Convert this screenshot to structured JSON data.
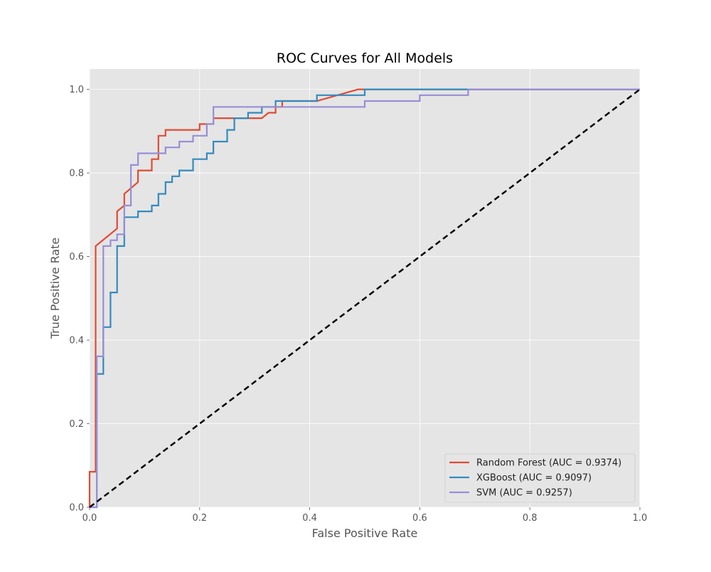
{
  "chart_data": {
    "type": "line",
    "title": "ROC Curves for All Models",
    "xlabel": "False Positive Rate",
    "ylabel": "True Positive Rate",
    "xlim": [
      0.0,
      1.0
    ],
    "ylim": [
      0.0,
      1.05
    ],
    "x_ticks": [
      "0.0",
      "0.2",
      "0.4",
      "0.6",
      "0.8",
      "1.0"
    ],
    "y_ticks": [
      "0.0",
      "0.2",
      "0.4",
      "0.6",
      "0.8",
      "1.0"
    ],
    "grid": true,
    "legend_position": "lower-right",
    "background_color": "#e5e5e5",
    "series": [
      {
        "name": "Random Forest (AUC = 0.9374)",
        "color": "#e24a33",
        "points": [
          [
            0.0,
            0.0
          ],
          [
            0.0,
            0.085
          ],
          [
            0.011,
            0.085
          ],
          [
            0.011,
            0.625
          ],
          [
            0.05,
            0.667
          ],
          [
            0.05,
            0.708
          ],
          [
            0.063,
            0.722
          ],
          [
            0.063,
            0.75
          ],
          [
            0.088,
            0.778
          ],
          [
            0.088,
            0.806
          ],
          [
            0.113,
            0.806
          ],
          [
            0.113,
            0.833
          ],
          [
            0.125,
            0.833
          ],
          [
            0.125,
            0.889
          ],
          [
            0.138,
            0.889
          ],
          [
            0.138,
            0.903
          ],
          [
            0.2,
            0.903
          ],
          [
            0.2,
            0.917
          ],
          [
            0.225,
            0.917
          ],
          [
            0.225,
            0.931
          ],
          [
            0.313,
            0.931
          ],
          [
            0.325,
            0.944
          ],
          [
            0.338,
            0.944
          ],
          [
            0.338,
            0.958
          ],
          [
            0.35,
            0.958
          ],
          [
            0.35,
            0.972
          ],
          [
            0.413,
            0.972
          ],
          [
            0.488,
            1.0
          ],
          [
            1.0,
            1.0
          ]
        ]
      },
      {
        "name": "XGBoost (AUC = 0.9097)",
        "color": "#348abd",
        "points": [
          [
            0.0,
            0.0
          ],
          [
            0.013,
            0.0
          ],
          [
            0.013,
            0.319
          ],
          [
            0.025,
            0.319
          ],
          [
            0.025,
            0.431
          ],
          [
            0.038,
            0.431
          ],
          [
            0.038,
            0.514
          ],
          [
            0.05,
            0.514
          ],
          [
            0.05,
            0.625
          ],
          [
            0.063,
            0.625
          ],
          [
            0.063,
            0.694
          ],
          [
            0.088,
            0.694
          ],
          [
            0.088,
            0.708
          ],
          [
            0.113,
            0.708
          ],
          [
            0.113,
            0.722
          ],
          [
            0.125,
            0.722
          ],
          [
            0.125,
            0.75
          ],
          [
            0.138,
            0.75
          ],
          [
            0.138,
            0.778
          ],
          [
            0.15,
            0.778
          ],
          [
            0.15,
            0.792
          ],
          [
            0.163,
            0.792
          ],
          [
            0.163,
            0.806
          ],
          [
            0.188,
            0.806
          ],
          [
            0.188,
            0.833
          ],
          [
            0.213,
            0.833
          ],
          [
            0.213,
            0.847
          ],
          [
            0.225,
            0.847
          ],
          [
            0.225,
            0.875
          ],
          [
            0.25,
            0.875
          ],
          [
            0.25,
            0.903
          ],
          [
            0.263,
            0.903
          ],
          [
            0.263,
            0.931
          ],
          [
            0.288,
            0.931
          ],
          [
            0.288,
            0.944
          ],
          [
            0.313,
            0.944
          ],
          [
            0.313,
            0.958
          ],
          [
            0.338,
            0.958
          ],
          [
            0.338,
            0.972
          ],
          [
            0.413,
            0.972
          ],
          [
            0.413,
            0.986
          ],
          [
            0.5,
            0.986
          ],
          [
            0.5,
            1.0
          ],
          [
            1.0,
            1.0
          ]
        ]
      },
      {
        "name": "SVM (AUC = 0.9257)",
        "color": "#988ed5",
        "points": [
          [
            0.0,
            0.0
          ],
          [
            0.013,
            0.0
          ],
          [
            0.013,
            0.361
          ],
          [
            0.025,
            0.361
          ],
          [
            0.025,
            0.625
          ],
          [
            0.038,
            0.625
          ],
          [
            0.038,
            0.639
          ],
          [
            0.05,
            0.639
          ],
          [
            0.05,
            0.653
          ],
          [
            0.063,
            0.653
          ],
          [
            0.063,
            0.722
          ],
          [
            0.075,
            0.722
          ],
          [
            0.075,
            0.819
          ],
          [
            0.088,
            0.819
          ],
          [
            0.088,
            0.847
          ],
          [
            0.138,
            0.847
          ],
          [
            0.138,
            0.861
          ],
          [
            0.163,
            0.861
          ],
          [
            0.163,
            0.875
          ],
          [
            0.188,
            0.875
          ],
          [
            0.188,
            0.889
          ],
          [
            0.213,
            0.889
          ],
          [
            0.213,
            0.917
          ],
          [
            0.225,
            0.917
          ],
          [
            0.225,
            0.958
          ],
          [
            0.5,
            0.958
          ],
          [
            0.5,
            0.972
          ],
          [
            0.6,
            0.972
          ],
          [
            0.6,
            0.986
          ],
          [
            0.688,
            0.986
          ],
          [
            0.688,
            1.0
          ],
          [
            1.0,
            1.0
          ]
        ]
      }
    ],
    "reference_line": {
      "color": "#000000",
      "points": [
        [
          0.0,
          0.0
        ],
        [
          1.0,
          1.0
        ]
      ]
    }
  }
}
